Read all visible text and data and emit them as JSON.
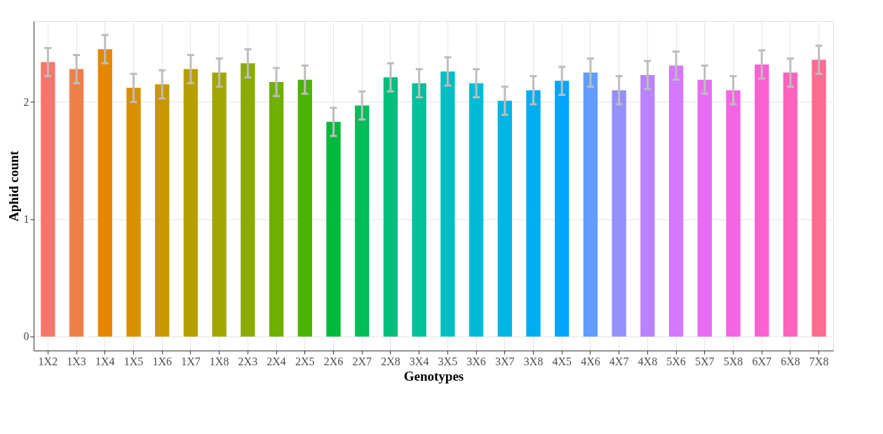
{
  "chart_data": {
    "type": "bar",
    "xlabel": "Genotypes",
    "ylabel": "Aphid count",
    "categories": [
      "1X2",
      "1X3",
      "1X4",
      "1X5",
      "1X6",
      "1X7",
      "1X8",
      "2X3",
      "2X4",
      "2X5",
      "2X6",
      "2X7",
      "2X8",
      "3X4",
      "3X5",
      "3X6",
      "3X7",
      "3X8",
      "4X5",
      "4X6",
      "4X7",
      "4X8",
      "5X6",
      "5X7",
      "5X8",
      "6X7",
      "6X8",
      "7X8"
    ],
    "values": [
      2.34,
      2.28,
      2.45,
      2.12,
      2.15,
      2.28,
      2.25,
      2.33,
      2.17,
      2.19,
      1.83,
      1.97,
      2.21,
      2.16,
      2.26,
      2.16,
      2.01,
      2.1,
      2.18,
      2.25,
      2.1,
      2.23,
      2.31,
      2.19,
      2.1,
      2.32,
      2.25,
      2.36
    ],
    "errors": [
      0.12,
      0.12,
      0.12,
      0.12,
      0.12,
      0.12,
      0.12,
      0.12,
      0.12,
      0.12,
      0.12,
      0.12,
      0.12,
      0.12,
      0.12,
      0.12,
      0.12,
      0.12,
      0.12,
      0.12,
      0.12,
      0.12,
      0.12,
      0.12,
      0.12,
      0.12,
      0.12,
      0.12
    ],
    "colors": [
      "#F8766D",
      "#EF7F49",
      "#E58700",
      "#D89000",
      "#C99800",
      "#B79F00",
      "#A3A500",
      "#8CAB00",
      "#6FB000",
      "#49B500",
      "#00B93C",
      "#00BC59",
      "#00BF7D",
      "#00C09B",
      "#00BFC4",
      "#00BBD6",
      "#00B5E6",
      "#00ADF1",
      "#00A5FF",
      "#619CFF",
      "#9590FF",
      "#B983FF",
      "#D478FF",
      "#E76BF3",
      "#F464E5",
      "#FD61D1",
      "#FF62BC",
      "#FF6C91"
    ],
    "ylim": [
      -0.12,
      2.69
    ],
    "yticks": [
      0,
      1,
      2
    ],
    "grid": true,
    "legend": false
  }
}
